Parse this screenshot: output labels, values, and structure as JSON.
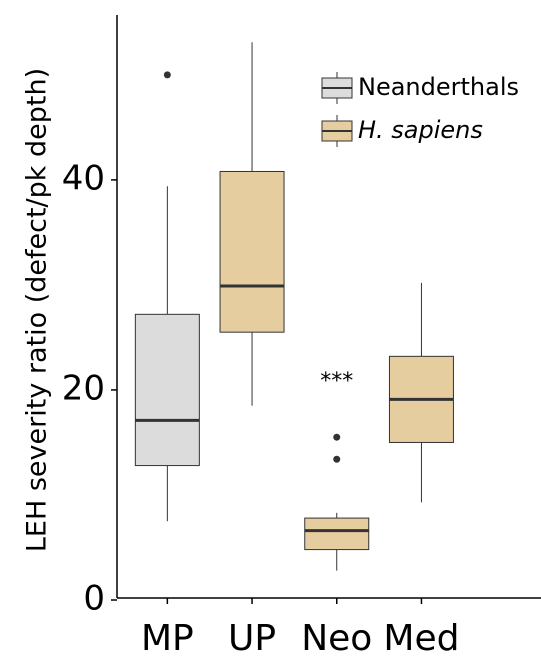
{
  "chart_data": {
    "type": "box",
    "y_label": "LEH severity ratio (defect/pk depth)",
    "categories": [
      "MP",
      "UP",
      "Neo",
      "Med"
    ],
    "ylim": [
      0,
      55.7
    ],
    "yticks": [
      0,
      20,
      40
    ],
    "annotation": "***",
    "legend": "top-right",
    "series": [
      {
        "name": "Neanderthals",
        "color": "#dcdcdc",
        "values": [
          {
            "low": 7.5,
            "q1": 12.8,
            "median": 17.1,
            "q3": 27.2,
            "high": 39.4,
            "outliers": [
              50
            ]
          },
          null,
          null,
          null
        ]
      },
      {
        "name": "H. sapiens",
        "color": "#e5cd9f",
        "values": [
          null,
          {
            "low": 18.5,
            "q1": 25.5,
            "median": 29.9,
            "q3": 40.8,
            "high": 53.1,
            "outliers": []
          },
          {
            "low": 2.8,
            "q1": 4.8,
            "median": 6.6,
            "q3": 7.8,
            "high": 8.3,
            "outliers": [
              15.5,
              13.4
            ]
          },
          {
            "low": 9.3,
            "q1": 15.0,
            "median": 19.1,
            "q3": 23.2,
            "high": 30.2,
            "outliers": []
          }
        ]
      }
    ]
  }
}
